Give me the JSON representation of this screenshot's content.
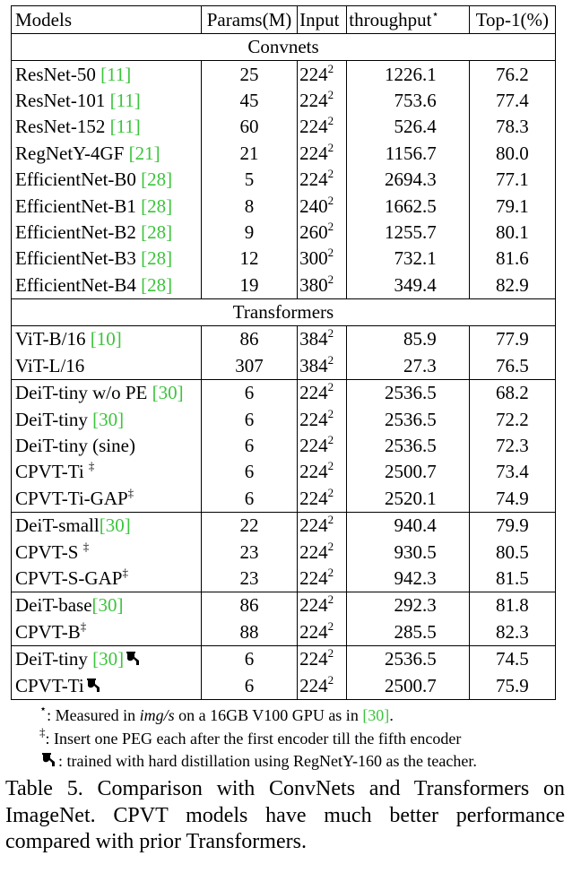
{
  "table": {
    "headers": {
      "models": "Models",
      "params": "Params(M)",
      "input": "Input",
      "throughput": "throughput",
      "throughput_mark": "⋆",
      "top1": "Top-1(%)"
    },
    "sections": {
      "convnets": "Convnets",
      "transformers": "Transformers"
    },
    "rows": [
      {
        "name": "ResNet-50 ",
        "cite": "[11]",
        "params": "25",
        "input": "224",
        "input_exp": "2",
        "throughput": "1226.1",
        "top1": "76.2"
      },
      {
        "name": "ResNet-101 ",
        "cite": "[11]",
        "params": "45",
        "input": "224",
        "input_exp": "2",
        "throughput": "753.6",
        "top1": "77.4"
      },
      {
        "name": "ResNet-152 ",
        "cite": "[11]",
        "params": "60",
        "input": "224",
        "input_exp": "2",
        "throughput": "526.4",
        "top1": "78.3"
      },
      {
        "name": "RegNetY-4GF ",
        "cite": "[21]",
        "params": "21",
        "input": "224",
        "input_exp": "2",
        "throughput": "1156.7",
        "top1": "80.0"
      },
      {
        "name": "EfficientNet-B0 ",
        "cite": "[28]",
        "params": "5",
        "input": "224",
        "input_exp": "2",
        "throughput": "2694.3",
        "top1": "77.1"
      },
      {
        "name": "EfficientNet-B1 ",
        "cite": "[28]",
        "params": "8",
        "input": "240",
        "input_exp": "2",
        "throughput": "1662.5",
        "top1": "79.1"
      },
      {
        "name": "EfficientNet-B2 ",
        "cite": "[28]",
        "params": "9",
        "input": "260",
        "input_exp": "2",
        "throughput": "1255.7",
        "top1": "80.1"
      },
      {
        "name": "EfficientNet-B3 ",
        "cite": "[28]",
        "params": "12",
        "input": "300",
        "input_exp": "2",
        "throughput": "732.1",
        "top1": "81.6"
      },
      {
        "name": "EfficientNet-B4 ",
        "cite": "[28]",
        "params": "19",
        "input": "380",
        "input_exp": "2",
        "throughput": "349.4",
        "top1": "82.9"
      },
      {
        "name": "ViT-B/16 ",
        "cite": "[10]",
        "params": "86",
        "input": "384",
        "input_exp": "2",
        "throughput": "85.9",
        "top1": "77.9"
      },
      {
        "name": "ViT-L/16",
        "cite": "",
        "params": "307",
        "input": "384",
        "input_exp": "2",
        "throughput": "27.3",
        "top1": "76.5"
      },
      {
        "name": "DeiT-tiny w/o PE ",
        "cite": "[30]",
        "params": "6",
        "input": "224",
        "input_exp": "2",
        "throughput": "2536.5",
        "top1": "68.2"
      },
      {
        "name": "DeiT-tiny ",
        "cite": "[30]",
        "params": "6",
        "input": "224",
        "input_exp": "2",
        "throughput": "2536.5",
        "top1": "72.2"
      },
      {
        "name": "DeiT-tiny (sine)",
        "cite": "",
        "params": "6",
        "input": "224",
        "input_exp": "2",
        "throughput": "2536.5",
        "top1": "72.3"
      },
      {
        "name": "CPVT-Ti ",
        "mark": "‡",
        "params": "6",
        "input": "224",
        "input_exp": "2",
        "throughput": "2500.7",
        "top1": "73.4"
      },
      {
        "name": "CPVT-Ti-GAP",
        "mark": "‡",
        "params": "6",
        "input": "224",
        "input_exp": "2",
        "throughput": "2520.1",
        "top1": "74.9"
      },
      {
        "name": "DeiT-small",
        "cite": "[30]",
        "params": "22",
        "input": "224",
        "input_exp": "2",
        "throughput": "940.4",
        "top1": "79.9"
      },
      {
        "name": "CPVT-S ",
        "mark": "‡",
        "params": "23",
        "input": "224",
        "input_exp": "2",
        "throughput": "930.5",
        "top1": "80.5"
      },
      {
        "name": "CPVT-S-GAP",
        "mark": "‡",
        "params": "23",
        "input": "224",
        "input_exp": "2",
        "throughput": "942.3",
        "top1": "81.5"
      },
      {
        "name": "DeiT-base",
        "cite": "[30]",
        "params": "86",
        "input": "224",
        "input_exp": "2",
        "throughput": "292.3",
        "top1": "81.8"
      },
      {
        "name": "CPVT-B",
        "mark": "‡",
        "params": "88",
        "input": "224",
        "input_exp": "2",
        "throughput": "285.5",
        "top1": "82.3"
      },
      {
        "name": "DeiT-tiny ",
        "cite": "[30]",
        "params": "6",
        "input": "224",
        "input_exp": "2",
        "throughput": "2536.5",
        "top1": "74.5"
      },
      {
        "name": "CPVT-Ti",
        "params": "6",
        "input": "224",
        "input_exp": "2",
        "throughput": "2500.7",
        "top1": "75.9"
      }
    ]
  },
  "notes": {
    "star_mark": "⋆",
    "star_a": ": Measured in ",
    "star_unit": "img/s",
    "star_b": " on a 16GB V100 GPU as in ",
    "star_cite": "[30]",
    "star_c": ".",
    "dagger_mark": "‡",
    "dagger_text": ": Insert one PEG each after the first encoder till the fifth encoder",
    "dist_text": ": trained with hard distillation using RegNetY-160 as the teacher.",
    "distill_icon": "alembic-icon"
  },
  "caption": {
    "line1": "Table 5. Comparison with ConvNets and Transformers on",
    "line2": "ImageNet.  CPVT models have much better performance",
    "line3": "compared with prior Transformers."
  },
  "colors": {
    "citation": "#3cc43c"
  }
}
